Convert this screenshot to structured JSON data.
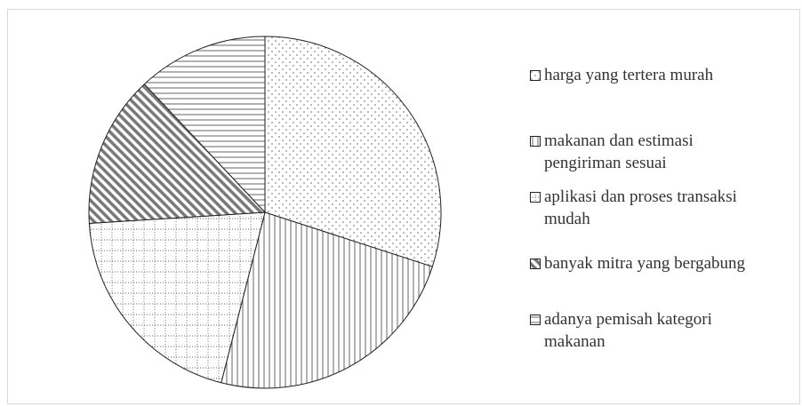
{
  "chart_data": {
    "type": "pie",
    "categories": [
      "harga yang tertera murah",
      "makanan dan estimasi pengiriman sesuai",
      "aplikasi dan proses transaksi mudah",
      "banyak mitra yang bergabung",
      "adanya pemisah kategori makanan"
    ],
    "values": [
      30,
      24,
      20,
      14,
      12
    ]
  }
}
